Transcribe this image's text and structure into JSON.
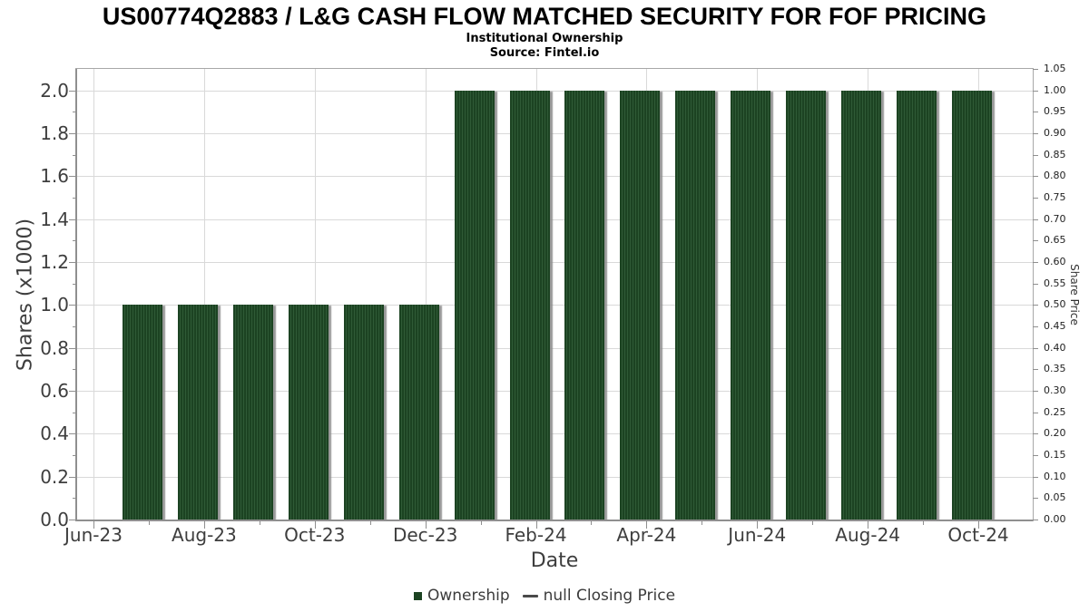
{
  "chart_data": {
    "type": "bar",
    "title": "US00774Q2883 / L&G CASH FLOW MATCHED SECURITY FOR FOF PRICING",
    "subtitle": "Institutional Ownership",
    "source": "Source: Fintel.io",
    "xlabel": "Date",
    "ylabel_left": "Shares (x1000)",
    "ylabel_right": "Share Price",
    "categories": [
      "Jul-23",
      "Aug-23",
      "Sep-23",
      "Oct-23",
      "Nov-23",
      "Dec-23",
      "Jan-24",
      "Feb-24",
      "Mar-24",
      "Apr-24",
      "May-24",
      "Jun-24",
      "Jul-24",
      "Aug-24",
      "Sep-24",
      "Oct-24"
    ],
    "series": [
      {
        "name": "Ownership",
        "type": "bar",
        "color": "#1c4322",
        "values": [
          1.0,
          1.0,
          1.0,
          1.0,
          1.0,
          1.0,
          2.0,
          2.0,
          2.0,
          2.0,
          2.0,
          2.0,
          2.0,
          2.0,
          2.0,
          2.0
        ]
      },
      {
        "name": "null Closing Price",
        "type": "line",
        "color": "#4a4a4a",
        "values": []
      }
    ],
    "x_axis": {
      "tick_labels": [
        "Jun-23",
        "Aug-23",
        "Oct-23",
        "Dec-23",
        "Feb-24",
        "Apr-24",
        "Jun-24",
        "Aug-24",
        "Oct-24"
      ],
      "months_per_major_tick": 2
    },
    "y_left": {
      "tick_labels": [
        "0.0",
        "0.2",
        "0.4",
        "0.6",
        "0.8",
        "1.0",
        "1.2",
        "1.4",
        "1.6",
        "1.8",
        "2.0"
      ],
      "lim": [
        0,
        2.1
      ]
    },
    "y_right": {
      "tick_labels": [
        "0.00",
        "0.05",
        "0.10",
        "0.15",
        "0.20",
        "0.25",
        "0.30",
        "0.35",
        "0.40",
        "0.45",
        "0.50",
        "0.55",
        "0.60",
        "0.65",
        "0.70",
        "0.75",
        "0.80",
        "0.85",
        "0.90",
        "0.95",
        "1.00",
        "1.05"
      ],
      "lim": [
        0,
        1.05
      ]
    },
    "grid": true,
    "legend_position": "bottom",
    "colors": {
      "bar_fill": "#1c4322",
      "bar_stripe": "#2f5a36",
      "bar_shadow": "#878787",
      "gridline": "#d9d9d9",
      "axis_text": "#3e3e3e",
      "title_text": "#000000"
    }
  }
}
